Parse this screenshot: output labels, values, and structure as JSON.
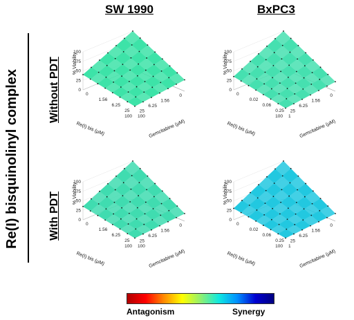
{
  "columns": [
    "SW 1990",
    "BxPC3"
  ],
  "rows": [
    "Without PDT",
    "With PDT"
  ],
  "side_title": "Re(I) bisquinolinyl complex",
  "colorbar": {
    "low_label": "Antagonism",
    "high_label": "Synergy",
    "colors": [
      "#b00000",
      "#ff0000",
      "#ff8a00",
      "#ffff00",
      "#90f070",
      "#10e8e0",
      "#0090ff",
      "#0000d0",
      "#000080"
    ]
  },
  "chart_data": [
    {
      "type": "surface",
      "column": "SW 1990",
      "row": "Without PDT",
      "zlabel": "% Viability",
      "xlabel": "Re(I) bis (µM)",
      "ylabel": "Gemcitabine (µM)",
      "z_ticks": [
        "0",
        "25",
        "50",
        "75",
        "100"
      ],
      "x_ticks": [
        "0",
        "1.56",
        "6.25",
        "25",
        "100"
      ],
      "y_ticks": [
        "0",
        "1.56",
        "6.25",
        "25",
        "100"
      ],
      "zlim": [
        0,
        100
      ],
      "grid_rows": 6,
      "grid_cols": 7,
      "corners_viability": {
        "origin": 100,
        "x_max": 40,
        "y_max": 30,
        "both_max": 15
      },
      "surface_color": "#3de3a8",
      "shading": "mostly additive (green), slight yellow near low Re(I) bis"
    },
    {
      "type": "surface",
      "column": "BxPC3",
      "row": "Without PDT",
      "zlabel": "% Viability",
      "xlabel": "Re(I) bis (µM)",
      "ylabel": "Gemcitabine (µM)",
      "z_ticks": [
        "0",
        "25",
        "50",
        "75",
        "100"
      ],
      "x_ticks": [
        "0",
        "1.56",
        "6.25",
        "25",
        "100"
      ],
      "y_ticks": [
        "0",
        "0.02",
        "0.06",
        "0.25",
        "1"
      ],
      "zlim": [
        0,
        100
      ],
      "grid_rows": 6,
      "grid_cols": 7,
      "corners_viability": {
        "origin": 100,
        "x_max": 35,
        "y_max": 25,
        "both_max": 10
      },
      "surface_color": "#46e0b0",
      "shading": "yellow-green antagonism region at low Re(I) bis, cyan synergy at mid doses"
    },
    {
      "type": "surface",
      "column": "SW 1990",
      "row": "With PDT",
      "zlabel": "% Viability",
      "xlabel": "Re(I) bis (µM)",
      "ylabel": "Gemcitabine (µM)",
      "z_ticks": [
        "0",
        "25",
        "50",
        "75",
        "100"
      ],
      "x_ticks": [
        "0",
        "1.56",
        "6.25",
        "25",
        "100"
      ],
      "y_ticks": [
        "0",
        "1.56",
        "6.25",
        "25",
        "100"
      ],
      "zlim": [
        0,
        100
      ],
      "grid_rows": 6,
      "grid_cols": 7,
      "corners_viability": {
        "origin": 100,
        "x_max": 35,
        "y_max": 20,
        "both_max": 10
      },
      "surface_color": "#40dcb0",
      "shading": "green with yellow spots at low doses, cyan-blue synergy at high Gemcitabine"
    },
    {
      "type": "surface",
      "column": "BxPC3",
      "row": "With PDT",
      "zlabel": "% Viability",
      "xlabel": "Re(I) bis (µM)",
      "ylabel": "Gemcitabine (µM)",
      "z_ticks": [
        "0",
        "25",
        "50",
        "75",
        "100"
      ],
      "x_ticks": [
        "0",
        "1.56",
        "6.25",
        "25",
        "100"
      ],
      "y_ticks": [
        "0",
        "0.02",
        "0.06",
        "0.25",
        "1"
      ],
      "zlim": [
        0,
        100
      ],
      "grid_rows": 6,
      "grid_cols": 7,
      "corners_viability": {
        "origin": 100,
        "x_max": 30,
        "y_max": 20,
        "both_max": 10
      },
      "surface_color": "#22c8e0",
      "shading": "predominantly cyan-blue synergy across the surface"
    }
  ]
}
